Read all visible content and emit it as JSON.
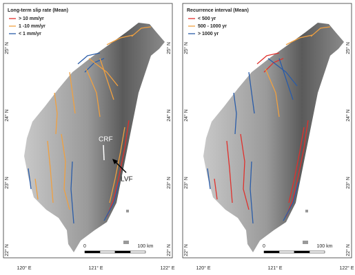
{
  "panels": [
    {
      "legend": {
        "title": "Long-term slip rate (Mean)",
        "items": [
          {
            "label": "> 10 mm/yr",
            "color": "#e0302c"
          },
          {
            "label": "1 -10 mm/yr",
            "color": "#f0a040"
          },
          {
            "label": "< 1 mm/yr",
            "color": "#2a5ca8"
          }
        ]
      },
      "lon_labels": [
        "120° E",
        "121° E",
        "122° E"
      ],
      "lat_labels": [
        "25° N",
        "24° N",
        "23° N",
        "22° N"
      ],
      "scale": {
        "start": "0",
        "end": "100 km"
      },
      "annotations": [
        "CRF",
        "LVF"
      ]
    },
    {
      "legend": {
        "title": "Recurrence interval (Mean)",
        "items": [
          {
            "label": "< 500 yr",
            "color": "#e0302c"
          },
          {
            "label": "500 - 1000 yr",
            "color": "#f0a040"
          },
          {
            "label": "> 1000 yr",
            "color": "#2a5ca8"
          }
        ]
      },
      "lon_labels": [
        "120° E",
        "121° E",
        "122° E"
      ],
      "lat_labels": [
        "25° N",
        "24° N",
        "23° N",
        "22° N"
      ],
      "scale": {
        "start": "0",
        "end": "100 km"
      }
    }
  ]
}
